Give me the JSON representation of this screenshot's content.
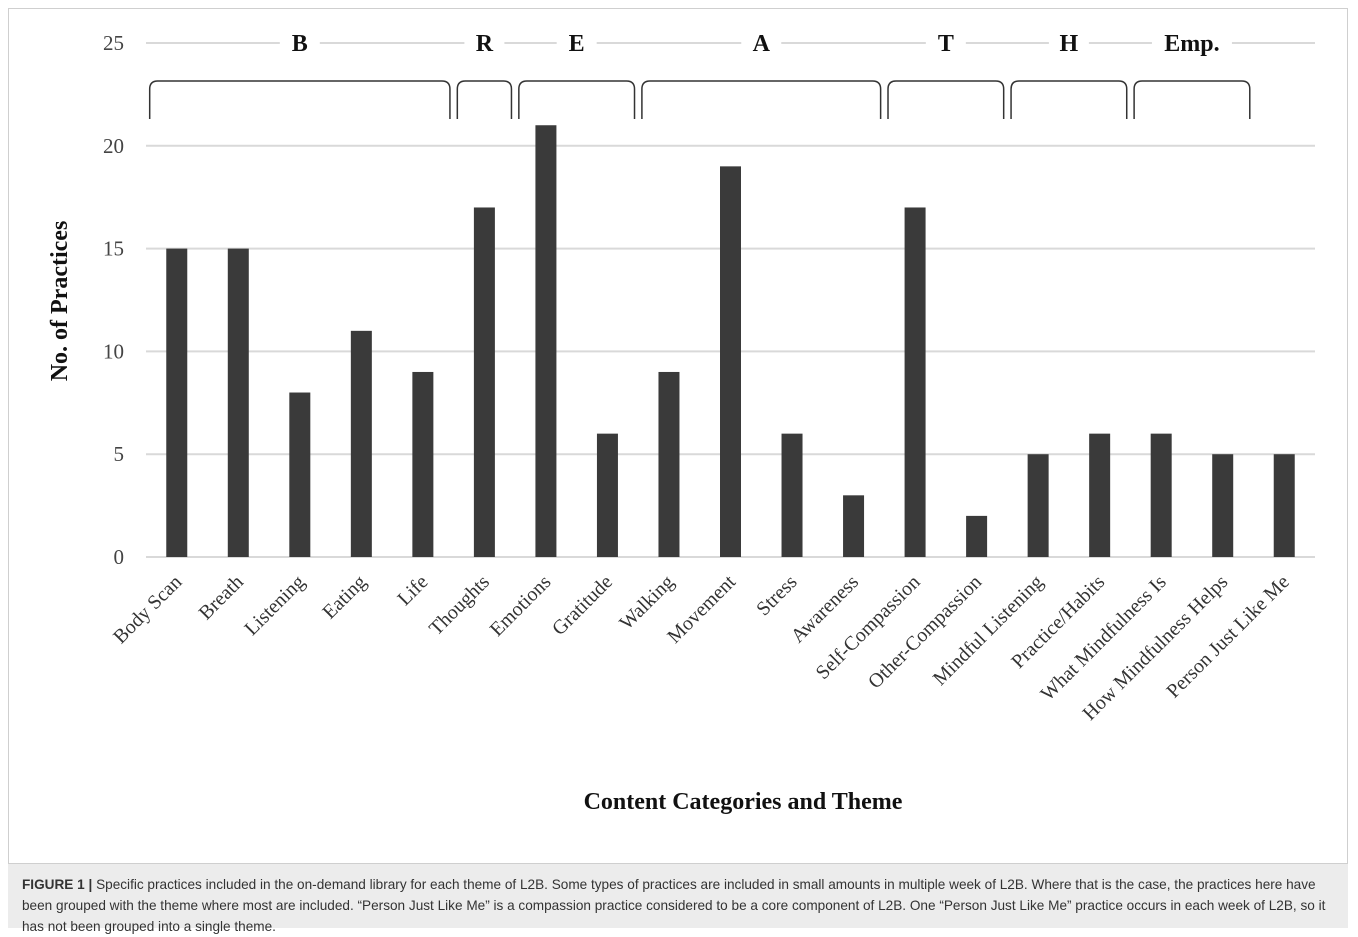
{
  "chart_data": {
    "type": "bar",
    "xlabel": "Content Categories and Theme",
    "ylabel": "No. of Practices",
    "ylim": [
      0,
      25
    ],
    "yticks": [
      0,
      5,
      10,
      15,
      20,
      25
    ],
    "grid": true,
    "bar_color": "#3a3a3a",
    "grid_color": "#d9d9d9",
    "categories": [
      "Body Scan",
      "Breath",
      "Listening",
      "Eating",
      "Life",
      "Thoughts",
      "Emotions",
      "Gratitude",
      "Walking",
      "Movement",
      "Stress",
      "Awareness",
      "Self-Compassion",
      "Other-Compassion",
      "Mindful Listening",
      "Practice/Habits",
      "What Mindfulness Is",
      "How Mindfulness Helps",
      "Person Just Like Me"
    ],
    "values": [
      15,
      15,
      8,
      11,
      9,
      17,
      21,
      6,
      9,
      19,
      6,
      3,
      17,
      2,
      5,
      6,
      6,
      5,
      5
    ],
    "themes": [
      {
        "label": "B",
        "categories": [
          "Body Scan",
          "Breath",
          "Listening",
          "Eating",
          "Life"
        ]
      },
      {
        "label": "R",
        "categories": [
          "Thoughts"
        ]
      },
      {
        "label": "E",
        "categories": [
          "Emotions",
          "Gratitude"
        ]
      },
      {
        "label": "A",
        "categories": [
          "Walking",
          "Movement",
          "Stress",
          "Awareness"
        ]
      },
      {
        "label": "T",
        "categories": [
          "Self-Compassion",
          "Other-Compassion"
        ]
      },
      {
        "label": "H",
        "categories": [
          "Mindful Listening",
          "Practice/Habits"
        ]
      },
      {
        "label": "Emp.",
        "categories": [
          "What Mindfulness Is",
          "How Mindfulness Helps"
        ]
      }
    ]
  },
  "caption": {
    "label": "FIGURE 1 |",
    "text": "Specific practices included in the on-demand library for each theme of L2B. Some types of practices are included in small amounts in multiple week of L2B. Where that is the case, the practices here have been grouped with the theme where most are included. “Person Just Like Me” is a compassion practice considered to be a core component of L2B. One “Person Just Like Me” practice occurs in each week of L2B, so it has not been grouped into a single theme."
  }
}
